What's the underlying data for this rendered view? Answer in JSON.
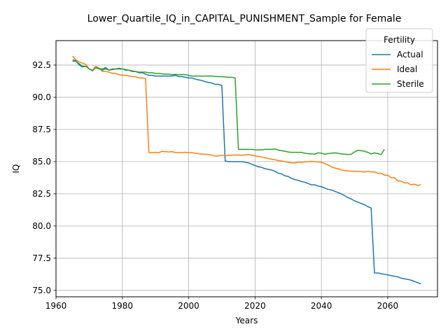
{
  "chart_data": {
    "type": "line",
    "title": "Lower_Quartile_IQ_in_CAPITAL_PUNISHMENT_Sample for Female",
    "xlabel": "Years",
    "ylabel": "IQ",
    "xlim": [
      1960,
      2075
    ],
    "ylim": [
      74.5,
      94.4
    ],
    "xticks": [
      1960,
      1980,
      2000,
      2020,
      2040,
      2060
    ],
    "yticks": [
      75.0,
      77.5,
      80.0,
      82.5,
      85.0,
      87.5,
      90.0,
      92.5
    ],
    "ytick_labels": [
      "75.0",
      "77.5",
      "80.0",
      "82.5",
      "85.0",
      "87.5",
      "90.0",
      "92.5"
    ],
    "grid": true,
    "legend": {
      "title": "Fertility",
      "position": "top-right"
    },
    "series": [
      {
        "name": "Actual",
        "color": "#1f77b4",
        "points": [
          [
            1965,
            92.8
          ],
          [
            1966,
            92.8
          ],
          [
            1967,
            92.6
          ],
          [
            1968,
            92.4
          ],
          [
            1969,
            92.4
          ],
          [
            1970,
            92.2
          ],
          [
            1971,
            92.1
          ],
          [
            1972,
            92.3
          ],
          [
            1973,
            92.2
          ],
          [
            1974,
            92.2
          ],
          [
            1975,
            92.3
          ],
          [
            1976,
            92.1
          ],
          [
            1977,
            92.2
          ],
          [
            1978,
            92.2
          ],
          [
            1979,
            92.2
          ],
          [
            1980,
            92.2
          ],
          [
            1981,
            92.1
          ],
          [
            1982,
            92.1
          ],
          [
            1983,
            92.0
          ],
          [
            1984,
            92.0
          ],
          [
            1985,
            91.9
          ],
          [
            1986,
            91.9
          ],
          [
            1987,
            91.8
          ],
          [
            1988,
            91.7
          ],
          [
            1989,
            91.7
          ],
          [
            1990,
            91.65
          ],
          [
            1991,
            91.65
          ],
          [
            1992,
            91.65
          ],
          [
            1993,
            91.65
          ],
          [
            1994,
            91.65
          ],
          [
            1995,
            91.65
          ],
          [
            1996,
            91.7
          ],
          [
            1997,
            91.6
          ],
          [
            1998,
            91.6
          ],
          [
            1999,
            91.55
          ],
          [
            2000,
            91.5
          ],
          [
            2001,
            91.5
          ],
          [
            2002,
            91.4
          ],
          [
            2003,
            91.35
          ],
          [
            2004,
            91.3
          ],
          [
            2005,
            91.2
          ],
          [
            2006,
            91.15
          ],
          [
            2007,
            91.1
          ],
          [
            2008,
            91.0
          ],
          [
            2009,
            91.0
          ],
          [
            2010,
            90.9
          ],
          [
            2011,
            85.05
          ],
          [
            2012,
            85.0
          ],
          [
            2013,
            85.0
          ],
          [
            2014,
            85.0
          ],
          [
            2015,
            85.0
          ],
          [
            2016,
            85.0
          ],
          [
            2017,
            84.95
          ],
          [
            2018,
            84.9
          ],
          [
            2019,
            84.8
          ],
          [
            2020,
            84.7
          ],
          [
            2021,
            84.6
          ],
          [
            2022,
            84.55
          ],
          [
            2023,
            84.45
          ],
          [
            2024,
            84.4
          ],
          [
            2025,
            84.35
          ],
          [
            2026,
            84.25
          ],
          [
            2027,
            84.1
          ],
          [
            2028,
            84.05
          ],
          [
            2029,
            83.9
          ],
          [
            2030,
            83.85
          ],
          [
            2031,
            83.7
          ],
          [
            2032,
            83.6
          ],
          [
            2033,
            83.55
          ],
          [
            2034,
            83.45
          ],
          [
            2035,
            83.4
          ],
          [
            2036,
            83.3
          ],
          [
            2037,
            83.2
          ],
          [
            2038,
            83.2
          ],
          [
            2039,
            83.1
          ],
          [
            2040,
            83.05
          ],
          [
            2041,
            82.95
          ],
          [
            2042,
            82.85
          ],
          [
            2043,
            82.8
          ],
          [
            2044,
            82.7
          ],
          [
            2045,
            82.6
          ],
          [
            2046,
            82.5
          ],
          [
            2047,
            82.35
          ],
          [
            2048,
            82.2
          ],
          [
            2049,
            82.1
          ],
          [
            2050,
            81.95
          ],
          [
            2051,
            81.85
          ],
          [
            2052,
            81.75
          ],
          [
            2053,
            81.65
          ],
          [
            2054,
            81.5
          ],
          [
            2055,
            81.4
          ],
          [
            2056,
            76.35
          ],
          [
            2057,
            76.35
          ],
          [
            2058,
            76.3
          ],
          [
            2059,
            76.25
          ],
          [
            2060,
            76.2
          ],
          [
            2061,
            76.15
          ],
          [
            2062,
            76.1
          ],
          [
            2063,
            76.05
          ],
          [
            2064,
            75.95
          ],
          [
            2065,
            75.9
          ],
          [
            2066,
            75.85
          ],
          [
            2067,
            75.8
          ],
          [
            2068,
            75.7
          ],
          [
            2069,
            75.6
          ],
          [
            2070,
            75.5
          ]
        ]
      },
      {
        "name": "Ideal",
        "color": "#ff7f0e",
        "points": [
          [
            1965,
            93.2
          ],
          [
            1966,
            92.9
          ],
          [
            1967,
            92.75
          ],
          [
            1968,
            92.65
          ],
          [
            1969,
            92.55
          ],
          [
            1970,
            92.2
          ],
          [
            1971,
            92.1
          ],
          [
            1972,
            92.4
          ],
          [
            1973,
            92.25
          ],
          [
            1974,
            92.0
          ],
          [
            1975,
            92.0
          ],
          [
            1976,
            91.95
          ],
          [
            1977,
            91.85
          ],
          [
            1978,
            91.85
          ],
          [
            1979,
            91.75
          ],
          [
            1980,
            91.7
          ],
          [
            1981,
            91.7
          ],
          [
            1982,
            91.65
          ],
          [
            1983,
            91.6
          ],
          [
            1984,
            91.6
          ],
          [
            1985,
            91.5
          ],
          [
            1986,
            91.5
          ],
          [
            1987,
            91.45
          ],
          [
            1988,
            85.7
          ],
          [
            1989,
            85.7
          ],
          [
            1990,
            85.72
          ],
          [
            1991,
            85.7
          ],
          [
            1992,
            85.8
          ],
          [
            1993,
            85.78
          ],
          [
            1994,
            85.75
          ],
          [
            1995,
            85.78
          ],
          [
            1996,
            85.7
          ],
          [
            1997,
            85.7
          ],
          [
            1998,
            85.7
          ],
          [
            1999,
            85.73
          ],
          [
            2000,
            85.7
          ],
          [
            2001,
            85.7
          ],
          [
            2002,
            85.65
          ],
          [
            2003,
            85.62
          ],
          [
            2004,
            85.58
          ],
          [
            2005,
            85.58
          ],
          [
            2006,
            85.55
          ],
          [
            2007,
            85.5
          ],
          [
            2008,
            85.42
          ],
          [
            2009,
            85.45
          ],
          [
            2010,
            85.48
          ],
          [
            2011,
            85.45
          ],
          [
            2012,
            85.5
          ],
          [
            2013,
            85.5
          ],
          [
            2014,
            85.52
          ],
          [
            2015,
            85.52
          ],
          [
            2016,
            85.5
          ],
          [
            2017,
            85.52
          ],
          [
            2018,
            85.55
          ],
          [
            2019,
            85.5
          ],
          [
            2020,
            85.45
          ],
          [
            2021,
            85.4
          ],
          [
            2022,
            85.35
          ],
          [
            2023,
            85.3
          ],
          [
            2024,
            85.25
          ],
          [
            2025,
            85.18
          ],
          [
            2026,
            85.15
          ],
          [
            2027,
            85.08
          ],
          [
            2028,
            85.05
          ],
          [
            2029,
            85.0
          ],
          [
            2030,
            84.95
          ],
          [
            2031,
            84.9
          ],
          [
            2032,
            84.9
          ],
          [
            2033,
            84.95
          ],
          [
            2034,
            84.95
          ],
          [
            2035,
            84.98
          ],
          [
            2036,
            85.0
          ],
          [
            2037,
            85.02
          ],
          [
            2038,
            85.0
          ],
          [
            2039,
            84.98
          ],
          [
            2040,
            84.95
          ],
          [
            2041,
            84.85
          ],
          [
            2042,
            84.75
          ],
          [
            2043,
            84.6
          ],
          [
            2044,
            84.5
          ],
          [
            2045,
            84.45
          ],
          [
            2046,
            84.35
          ],
          [
            2047,
            84.3
          ],
          [
            2048,
            84.28
          ],
          [
            2049,
            84.25
          ],
          [
            2050,
            84.25
          ],
          [
            2051,
            84.25
          ],
          [
            2052,
            84.22
          ],
          [
            2053,
            84.2
          ],
          [
            2054,
            84.25
          ],
          [
            2055,
            84.2
          ],
          [
            2056,
            84.2
          ],
          [
            2057,
            84.1
          ],
          [
            2058,
            84.1
          ],
          [
            2059,
            83.95
          ],
          [
            2060,
            83.95
          ],
          [
            2061,
            83.75
          ],
          [
            2062,
            83.75
          ],
          [
            2063,
            83.5
          ],
          [
            2064,
            83.5
          ],
          [
            2065,
            83.35
          ],
          [
            2066,
            83.35
          ],
          [
            2067,
            83.2
          ],
          [
            2068,
            83.25
          ],
          [
            2069,
            83.15
          ],
          [
            2070,
            83.2
          ]
        ]
      },
      {
        "name": "Sterile",
        "color": "#2ca02c",
        "points": [
          [
            1965,
            92.9
          ],
          [
            1966,
            92.85
          ],
          [
            1967,
            92.5
          ],
          [
            1968,
            92.35
          ],
          [
            1969,
            92.4
          ],
          [
            1970,
            92.2
          ],
          [
            1971,
            92.05
          ],
          [
            1972,
            92.3
          ],
          [
            1973,
            92.25
          ],
          [
            1974,
            92.1
          ],
          [
            1975,
            92.2
          ],
          [
            1976,
            92.1
          ],
          [
            1977,
            92.15
          ],
          [
            1978,
            92.2
          ],
          [
            1979,
            92.25
          ],
          [
            1980,
            92.2
          ],
          [
            1981,
            92.15
          ],
          [
            1982,
            92.1
          ],
          [
            1983,
            92.05
          ],
          [
            1984,
            92.0
          ],
          [
            1985,
            91.95
          ],
          [
            1986,
            91.95
          ],
          [
            1987,
            91.95
          ],
          [
            1988,
            91.9
          ],
          [
            1989,
            91.9
          ],
          [
            1990,
            91.85
          ],
          [
            1991,
            91.85
          ],
          [
            1992,
            91.82
          ],
          [
            1993,
            91.8
          ],
          [
            1994,
            91.8
          ],
          [
            1995,
            91.75
          ],
          [
            1996,
            91.78
          ],
          [
            1997,
            91.75
          ],
          [
            1998,
            91.75
          ],
          [
            1999,
            91.75
          ],
          [
            2000,
            91.7
          ],
          [
            2001,
            91.65
          ],
          [
            2002,
            91.65
          ],
          [
            2003,
            91.65
          ],
          [
            2004,
            91.65
          ],
          [
            2005,
            91.65
          ],
          [
            2006,
            91.65
          ],
          [
            2007,
            91.65
          ],
          [
            2008,
            91.62
          ],
          [
            2009,
            91.6
          ],
          [
            2010,
            91.6
          ],
          [
            2011,
            91.58
          ],
          [
            2012,
            91.55
          ],
          [
            2013,
            91.55
          ],
          [
            2014,
            91.5
          ],
          [
            2015,
            85.95
          ],
          [
            2016,
            85.95
          ],
          [
            2017,
            85.95
          ],
          [
            2018,
            85.95
          ],
          [
            2019,
            85.95
          ],
          [
            2020,
            85.92
          ],
          [
            2021,
            85.92
          ],
          [
            2022,
            85.92
          ],
          [
            2023,
            85.95
          ],
          [
            2024,
            85.95
          ],
          [
            2025,
            85.95
          ],
          [
            2026,
            85.98
          ],
          [
            2027,
            85.9
          ],
          [
            2028,
            85.85
          ],
          [
            2029,
            85.8
          ],
          [
            2030,
            85.75
          ],
          [
            2031,
            85.72
          ],
          [
            2032,
            85.72
          ],
          [
            2033,
            85.72
          ],
          [
            2034,
            85.72
          ],
          [
            2035,
            85.65
          ],
          [
            2036,
            85.62
          ],
          [
            2037,
            85.6
          ],
          [
            2038,
            85.58
          ],
          [
            2039,
            85.68
          ],
          [
            2040,
            85.65
          ],
          [
            2041,
            85.58
          ],
          [
            2042,
            85.62
          ],
          [
            2043,
            85.65
          ],
          [
            2044,
            85.68
          ],
          [
            2045,
            85.65
          ],
          [
            2046,
            85.6
          ],
          [
            2047,
            85.58
          ],
          [
            2048,
            85.55
          ],
          [
            2049,
            85.58
          ],
          [
            2050,
            85.75
          ],
          [
            2051,
            85.88
          ],
          [
            2052,
            85.85
          ],
          [
            2053,
            85.8
          ],
          [
            2054,
            85.72
          ],
          [
            2055,
            85.6
          ],
          [
            2056,
            85.68
          ],
          [
            2057,
            85.62
          ],
          [
            2058,
            85.55
          ],
          [
            2059,
            85.95
          ]
        ]
      }
    ]
  }
}
